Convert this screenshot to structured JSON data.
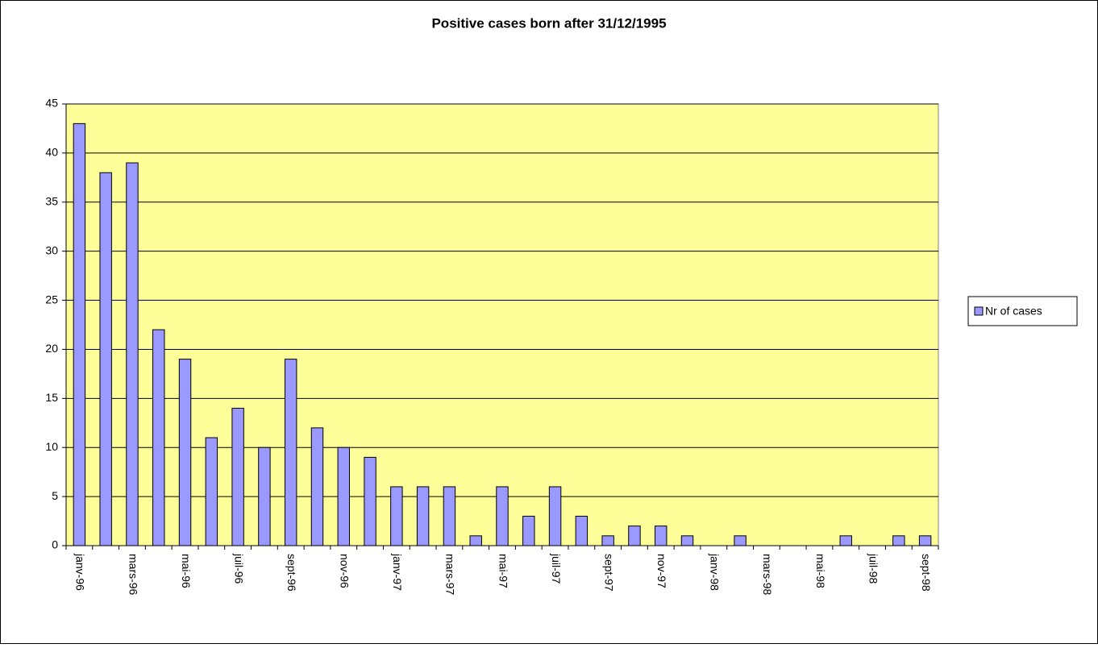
{
  "chart_data": {
    "type": "bar",
    "title": "Positive cases born after 31/12/1995",
    "categories": [
      "janv-96",
      null,
      "mars-96",
      null,
      "mai-96",
      null,
      "juil-96",
      null,
      "sept-96",
      null,
      "nov-96",
      null,
      "janv-97",
      null,
      "mars-97",
      null,
      "mai-97",
      null,
      "juil-97",
      null,
      "sept-97",
      null,
      "nov-97",
      null,
      "janv-98",
      null,
      "mars-98",
      null,
      "mai-98",
      null,
      "juil-98",
      null,
      "sept-98"
    ],
    "series": [
      {
        "name": "Nr of cases",
        "color": "#9999ff",
        "values": [
          43,
          38,
          39,
          22,
          19,
          11,
          14,
          10,
          19,
          12,
          10,
          9,
          6,
          6,
          6,
          1,
          6,
          3,
          6,
          3,
          1,
          2,
          2,
          1,
          0,
          1,
          0,
          0,
          0,
          1,
          0,
          1,
          1
        ]
      }
    ],
    "ylim": [
      0,
      45
    ],
    "yticks": [
      0,
      5,
      10,
      15,
      20,
      25,
      30,
      35,
      40,
      45
    ],
    "grid": true,
    "plot_background": "#ffff99",
    "legend": "right"
  }
}
